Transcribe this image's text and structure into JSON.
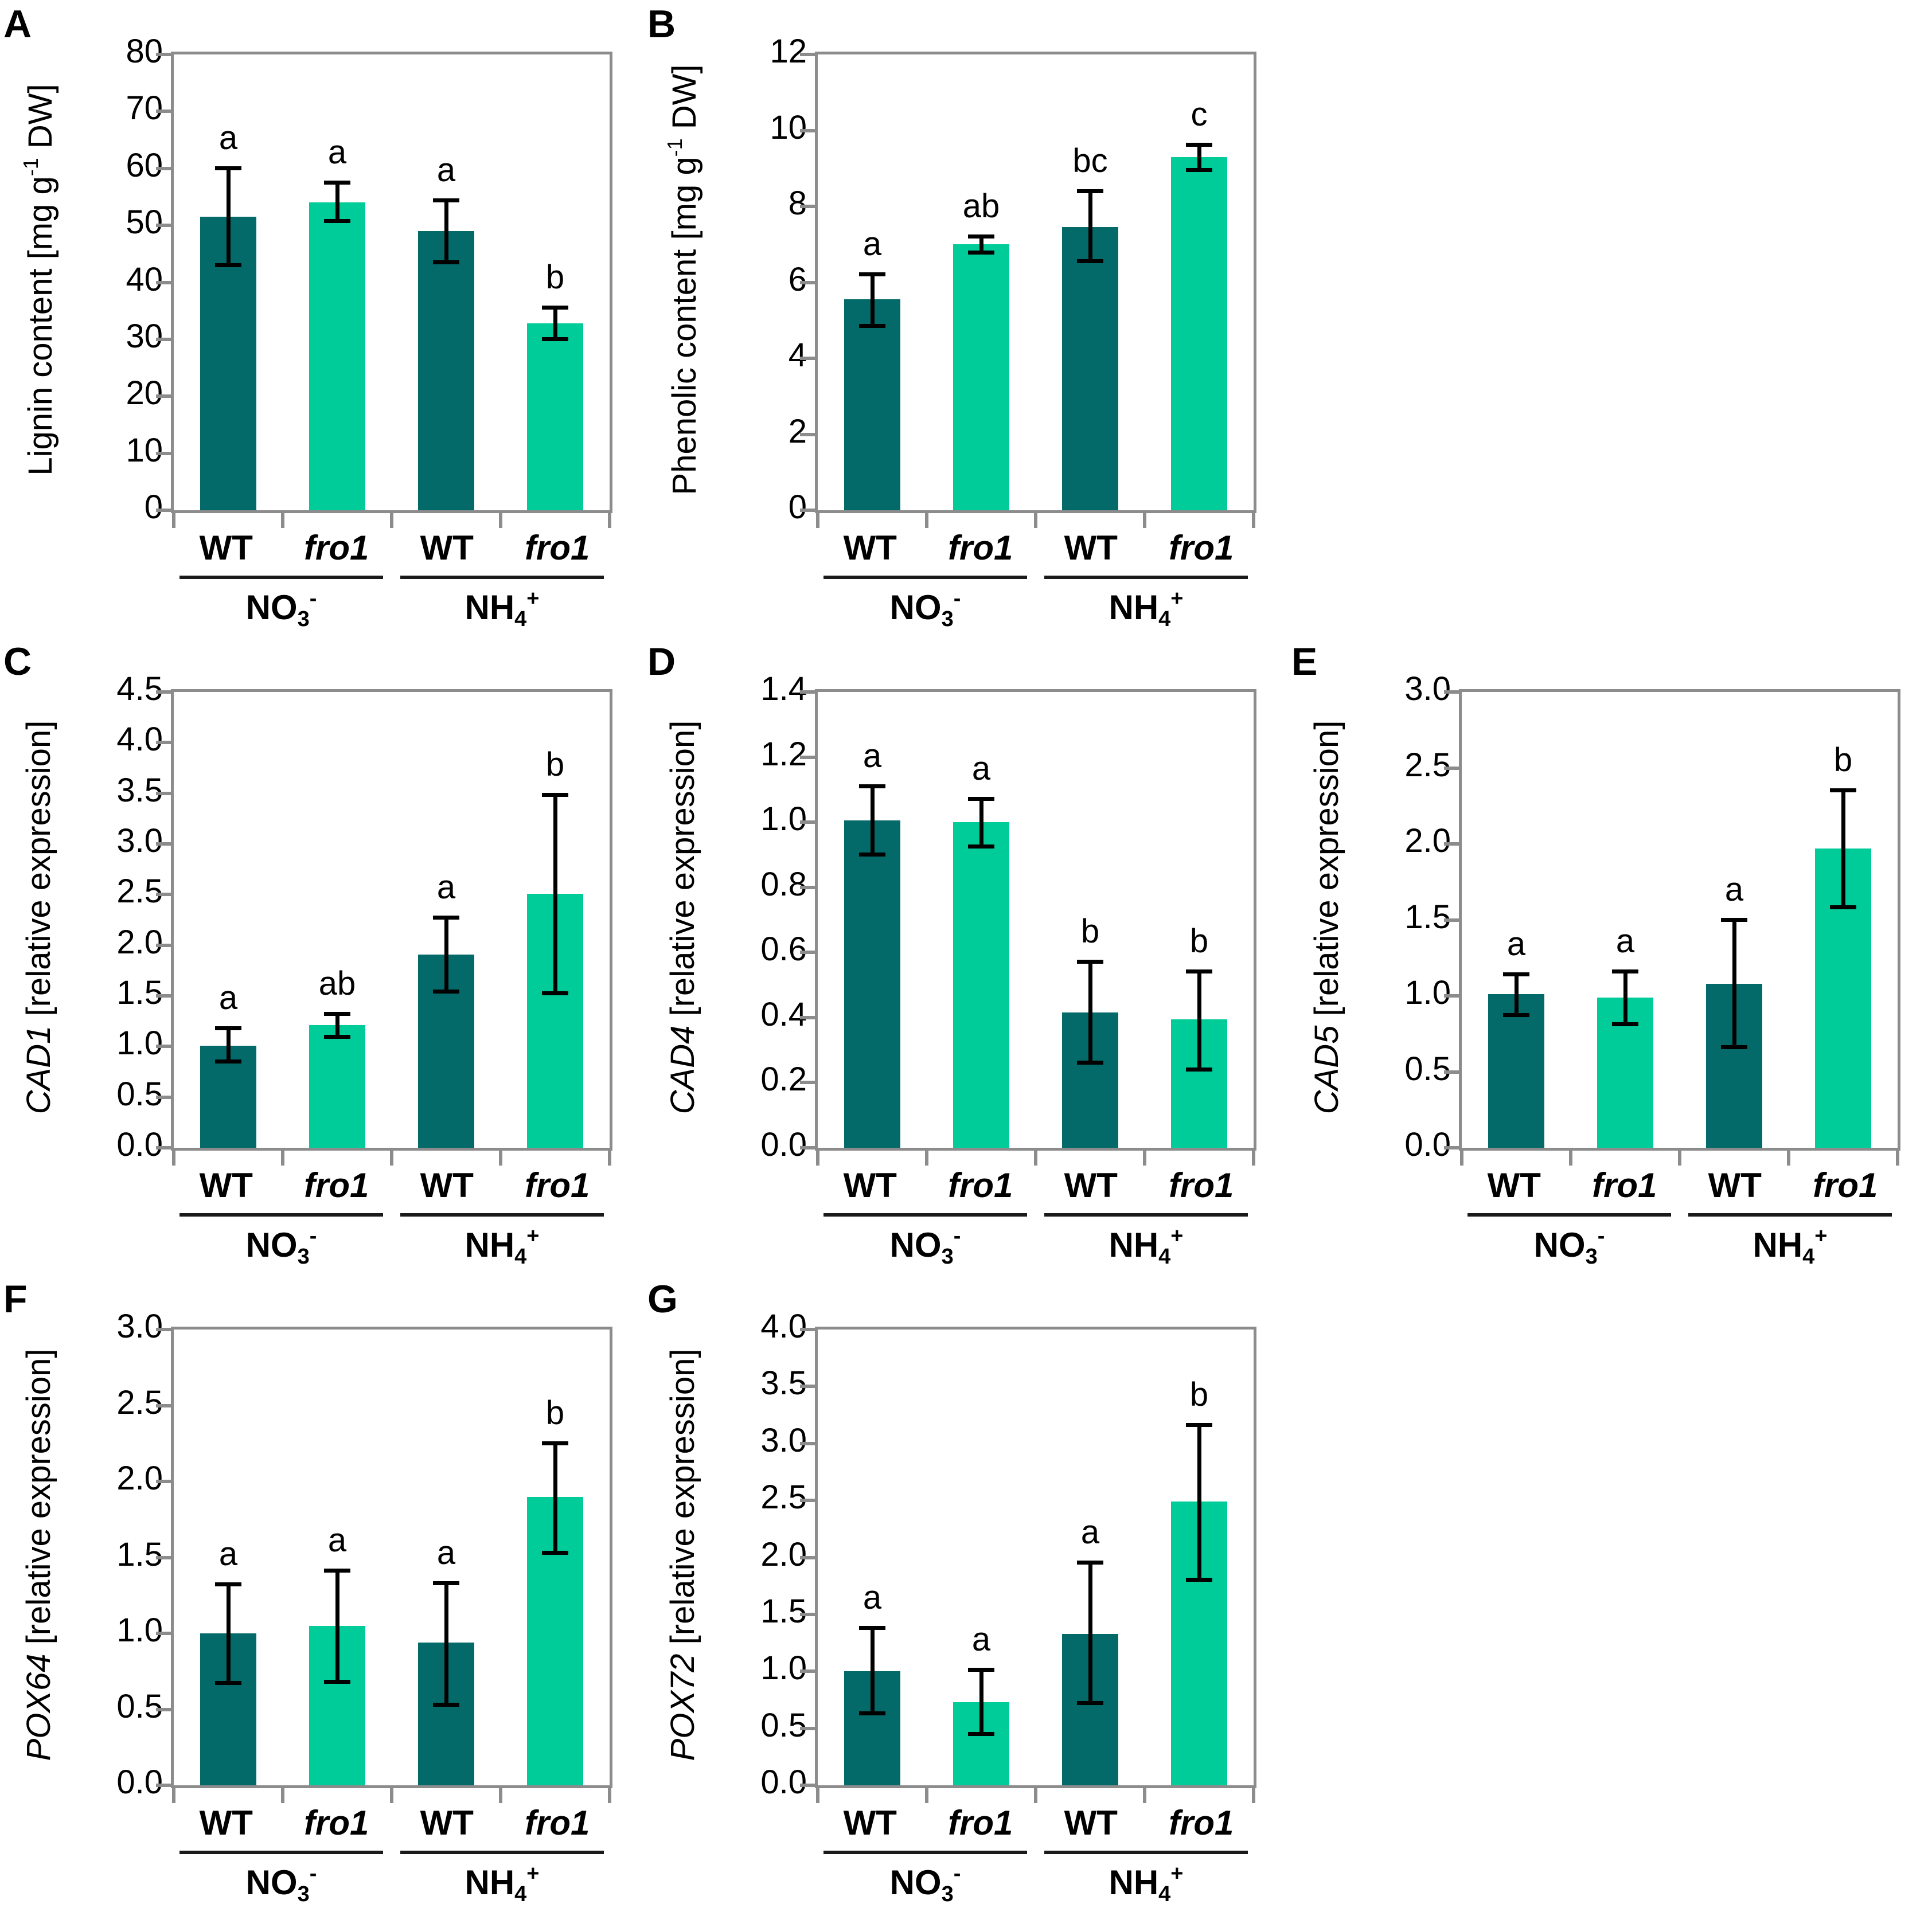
{
  "colors": {
    "wt_bar": "#046a69",
    "fro1_bar": "#00cc9a",
    "axis": "#8c8c8c",
    "error_bar": "#000000",
    "text": "#000000"
  },
  "x_groups": [
    {
      "parts": [
        {
          "style": "normal",
          "text": "NO"
        },
        {
          "style": "sub",
          "text": "3"
        },
        {
          "style": "sup",
          "text": "-"
        }
      ]
    },
    {
      "parts": [
        {
          "style": "normal",
          "text": "NH"
        },
        {
          "style": "sub",
          "text": "4"
        },
        {
          "style": "sup",
          "text": "+"
        }
      ]
    }
  ],
  "chart_data": [
    {
      "id": "A",
      "panel_letter": "A",
      "type": "bar",
      "grid": false,
      "ylabel_parts": [
        {
          "style": "normal",
          "text": "Lignin content [mg g"
        },
        {
          "style": "sup",
          "text": "-1"
        },
        {
          "style": "normal",
          "text": " DW]"
        }
      ],
      "ymax": 80,
      "yticks": [
        "0",
        "10",
        "20",
        "30",
        "40",
        "50",
        "60",
        "70",
        "80"
      ],
      "bars": [
        {
          "label": "WT",
          "italic": false,
          "series": "WT",
          "group": 0,
          "value": 51.5,
          "err_lo": 43.0,
          "err_hi": 60.0,
          "letter": "a"
        },
        {
          "label": "fro1",
          "italic": true,
          "series": "fro1",
          "group": 0,
          "value": 54.0,
          "err_lo": 50.7,
          "err_hi": 57.5,
          "letter": "a"
        },
        {
          "label": "WT",
          "italic": false,
          "series": "WT",
          "group": 1,
          "value": 49.0,
          "err_lo": 43.5,
          "err_hi": 54.3,
          "letter": "a"
        },
        {
          "label": "fro1",
          "italic": true,
          "series": "fro1",
          "group": 1,
          "value": 32.8,
          "err_lo": 30.0,
          "err_hi": 35.5,
          "letter": "b"
        }
      ]
    },
    {
      "id": "B",
      "panel_letter": "B",
      "type": "bar",
      "grid": false,
      "ylabel_parts": [
        {
          "style": "normal",
          "text": "Phenolic content [mg g"
        },
        {
          "style": "sup",
          "text": "-1"
        },
        {
          "style": "normal",
          "text": " DW]"
        }
      ],
      "ymax": 12,
      "yticks": [
        "0",
        "2",
        "4",
        "6",
        "8",
        "10",
        "12"
      ],
      "bars": [
        {
          "label": "WT",
          "italic": false,
          "series": "WT",
          "group": 0,
          "value": 5.55,
          "err_lo": 4.85,
          "err_hi": 6.2,
          "letter": "a"
        },
        {
          "label": "fro1",
          "italic": true,
          "series": "fro1",
          "group": 0,
          "value": 7.0,
          "err_lo": 6.78,
          "err_hi": 7.2,
          "letter": "ab"
        },
        {
          "label": "WT",
          "italic": false,
          "series": "WT",
          "group": 1,
          "value": 7.45,
          "err_lo": 6.55,
          "err_hi": 8.4,
          "letter": "bc"
        },
        {
          "label": "fro1",
          "italic": true,
          "series": "fro1",
          "group": 1,
          "value": 9.3,
          "err_lo": 8.95,
          "err_hi": 9.62,
          "letter": "c"
        }
      ]
    },
    {
      "id": "C",
      "panel_letter": "C",
      "type": "bar",
      "grid": false,
      "ylabel_parts": [
        {
          "style": "italic",
          "text": "CAD1"
        },
        {
          "style": "normal",
          "text": " [relative expression]"
        }
      ],
      "ymax": 4.5,
      "yticks": [
        "0.0",
        "0.5",
        "1.0",
        "1.5",
        "2.0",
        "2.5",
        "3.0",
        "3.5",
        "4.0",
        "4.5"
      ],
      "bars": [
        {
          "label": "WT",
          "italic": false,
          "series": "WT",
          "group": 0,
          "value": 1.01,
          "err_lo": 0.85,
          "err_hi": 1.18,
          "letter": "a"
        },
        {
          "label": "fro1",
          "italic": true,
          "series": "fro1",
          "group": 0,
          "value": 1.21,
          "err_lo": 1.09,
          "err_hi": 1.32,
          "letter": "ab"
        },
        {
          "label": "WT",
          "italic": false,
          "series": "WT",
          "group": 1,
          "value": 1.91,
          "err_lo": 1.54,
          "err_hi": 2.27,
          "letter": "a"
        },
        {
          "label": "fro1",
          "italic": true,
          "series": "fro1",
          "group": 1,
          "value": 2.51,
          "err_lo": 1.52,
          "err_hi": 3.48,
          "letter": "b"
        }
      ]
    },
    {
      "id": "D",
      "panel_letter": "D",
      "type": "bar",
      "grid": false,
      "ylabel_parts": [
        {
          "style": "italic",
          "text": "CAD4"
        },
        {
          "style": "normal",
          "text": " [relative expression]"
        }
      ],
      "ymax": 1.4,
      "yticks": [
        "0.0",
        "0.2",
        "0.4",
        "0.6",
        "0.8",
        "1.0",
        "1.2",
        "1.4"
      ],
      "bars": [
        {
          "label": "WT",
          "italic": false,
          "series": "WT",
          "group": 0,
          "value": 1.005,
          "err_lo": 0.9,
          "err_hi": 1.11,
          "letter": "a"
        },
        {
          "label": "fro1",
          "italic": true,
          "series": "fro1",
          "group": 0,
          "value": 1.0,
          "err_lo": 0.925,
          "err_hi": 1.07,
          "letter": "a"
        },
        {
          "label": "WT",
          "italic": false,
          "series": "WT",
          "group": 1,
          "value": 0.415,
          "err_lo": 0.26,
          "err_hi": 0.57,
          "letter": "b"
        },
        {
          "label": "fro1",
          "italic": true,
          "series": "fro1",
          "group": 1,
          "value": 0.395,
          "err_lo": 0.24,
          "err_hi": 0.54,
          "letter": "b"
        }
      ]
    },
    {
      "id": "E",
      "panel_letter": "E",
      "type": "bar",
      "grid": false,
      "ylabel_parts": [
        {
          "style": "italic",
          "text": "CAD5"
        },
        {
          "style": "normal",
          "text": " [relative expression]"
        }
      ],
      "ymax": 3.0,
      "yticks": [
        "0.0",
        "0.5",
        "1.0",
        "1.5",
        "2.0",
        "2.5",
        "3.0"
      ],
      "bars": [
        {
          "label": "WT",
          "italic": false,
          "series": "WT",
          "group": 0,
          "value": 1.01,
          "err_lo": 0.87,
          "err_hi": 1.14,
          "letter": "a"
        },
        {
          "label": "fro1",
          "italic": true,
          "series": "fro1",
          "group": 0,
          "value": 0.99,
          "err_lo": 0.81,
          "err_hi": 1.16,
          "letter": "a"
        },
        {
          "label": "WT",
          "italic": false,
          "series": "WT",
          "group": 1,
          "value": 1.08,
          "err_lo": 0.66,
          "err_hi": 1.5,
          "letter": "a"
        },
        {
          "label": "fro1",
          "italic": true,
          "series": "fro1",
          "group": 1,
          "value": 1.97,
          "err_lo": 1.58,
          "err_hi": 2.35,
          "letter": "b"
        }
      ]
    },
    {
      "id": "F",
      "panel_letter": "F",
      "type": "bar",
      "grid": false,
      "ylabel_parts": [
        {
          "style": "italic",
          "text": "POX64"
        },
        {
          "style": "normal",
          "text": " [relative expression]"
        }
      ],
      "ymax": 3.0,
      "yticks": [
        "0.0",
        "0.5",
        "1.0",
        "1.5",
        "2.0",
        "2.5",
        "3.0"
      ],
      "bars": [
        {
          "label": "WT",
          "italic": false,
          "series": "WT",
          "group": 0,
          "value": 1.0,
          "err_lo": 0.67,
          "err_hi": 1.32,
          "letter": "a"
        },
        {
          "label": "fro1",
          "italic": true,
          "series": "fro1",
          "group": 0,
          "value": 1.05,
          "err_lo": 0.68,
          "err_hi": 1.41,
          "letter": "a"
        },
        {
          "label": "WT",
          "italic": false,
          "series": "WT",
          "group": 1,
          "value": 0.94,
          "err_lo": 0.53,
          "err_hi": 1.33,
          "letter": "a"
        },
        {
          "label": "fro1",
          "italic": true,
          "series": "fro1",
          "group": 1,
          "value": 1.9,
          "err_lo": 1.53,
          "err_hi": 2.25,
          "letter": "b"
        }
      ]
    },
    {
      "id": "G",
      "panel_letter": "G",
      "type": "bar",
      "grid": false,
      "ylabel_parts": [
        {
          "style": "italic",
          "text": "POX72"
        },
        {
          "style": "normal",
          "text": " [relative expression]"
        }
      ],
      "ymax": 4.0,
      "yticks": [
        "0.0",
        "0.5",
        "1.0",
        "1.5",
        "2.0",
        "2.5",
        "3.0",
        "3.5",
        "4.0"
      ],
      "bars": [
        {
          "label": "WT",
          "italic": false,
          "series": "WT",
          "group": 0,
          "value": 1.0,
          "err_lo": 0.63,
          "err_hi": 1.38,
          "letter": "a"
        },
        {
          "label": "fro1",
          "italic": true,
          "series": "fro1",
          "group": 0,
          "value": 0.73,
          "err_lo": 0.45,
          "err_hi": 1.01,
          "letter": "a"
        },
        {
          "label": "WT",
          "italic": false,
          "series": "WT",
          "group": 1,
          "value": 1.33,
          "err_lo": 0.72,
          "err_hi": 1.95,
          "letter": "a"
        },
        {
          "label": "fro1",
          "italic": true,
          "series": "fro1",
          "group": 1,
          "value": 2.49,
          "err_lo": 1.8,
          "err_hi": 3.16,
          "letter": "b"
        }
      ]
    }
  ]
}
